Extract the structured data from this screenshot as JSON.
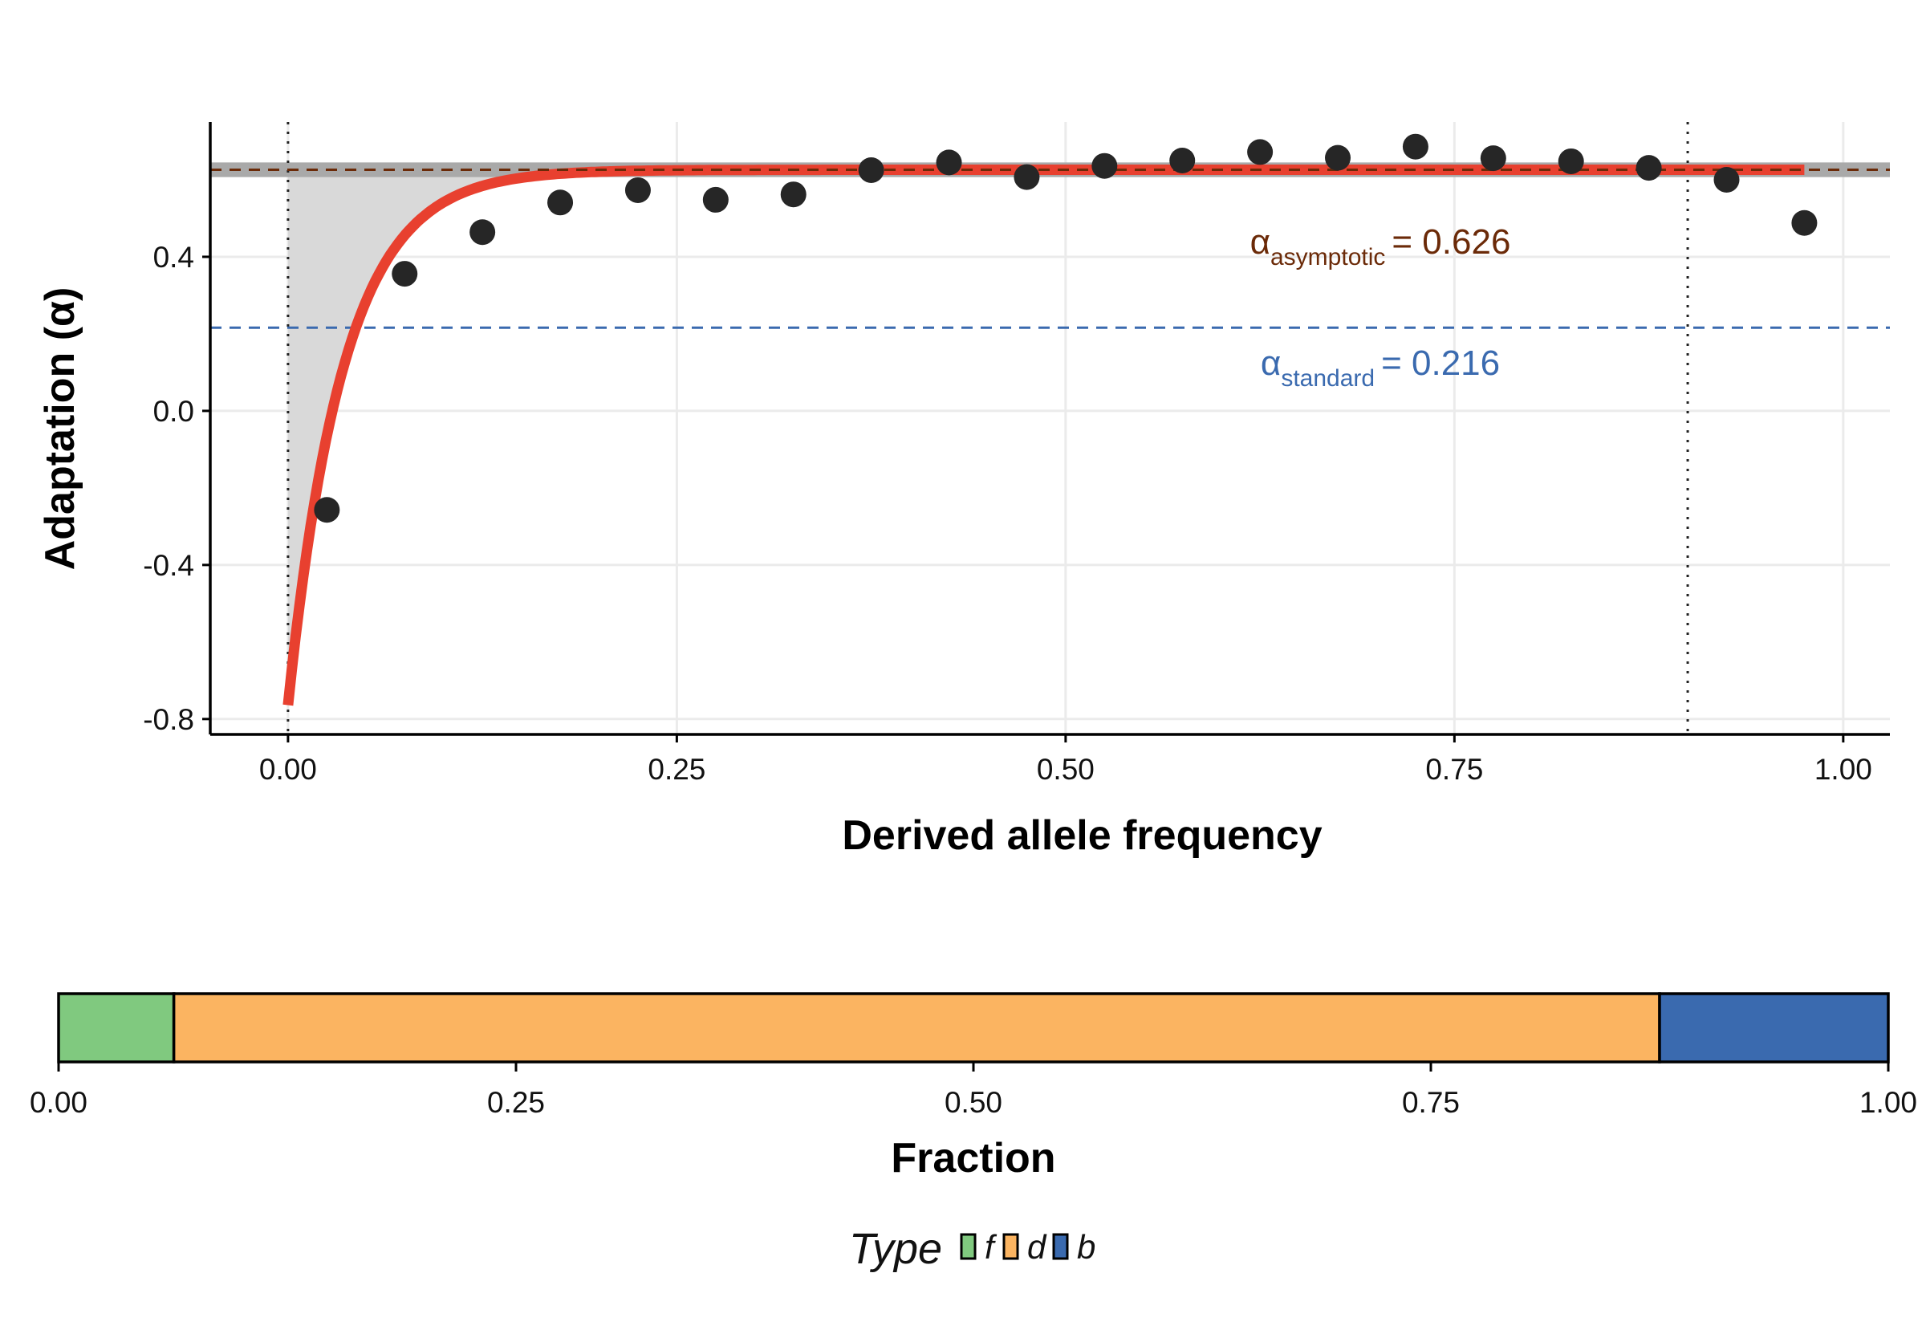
{
  "chart_data": [
    {
      "type": "scatter",
      "xlabel": "Derived allele frequency",
      "ylabel": "Adaptation (α)",
      "xlim": [
        -0.05,
        1.03
      ],
      "ylim": [
        -0.84,
        0.75
      ],
      "xticks": [
        "0.00",
        "0.25",
        "0.50",
        "0.75",
        "1.00"
      ],
      "yticks": [
        "-0.8",
        "-0.4",
        "0.0",
        "0.4"
      ],
      "grid": true,
      "series": [
        {
          "kind": "points",
          "x": [
            0.025,
            0.075,
            0.125,
            0.175,
            0.225,
            0.275,
            0.325,
            0.375,
            0.425,
            0.475,
            0.525,
            0.575,
            0.625,
            0.675,
            0.725,
            0.775,
            0.825,
            0.875,
            0.925,
            0.975
          ],
          "y": [
            -0.257,
            0.356,
            0.464,
            0.541,
            0.573,
            0.548,
            0.562,
            0.625,
            0.645,
            0.607,
            0.636,
            0.65,
            0.672,
            0.657,
            0.686,
            0.656,
            0.648,
            0.631,
            0.6,
            0.488
          ],
          "color": "#262626"
        },
        {
          "kind": "fitted-curve",
          "model": "a + b*exp(-c*x)",
          "a": 0.626,
          "b": -1.39,
          "c": 28,
          "x_range": [
            0.0,
            0.975
          ],
          "color": "#e8402f"
        }
      ],
      "reference_lines": {
        "asymptotic": {
          "value": 0.626,
          "ci": [
            0.607,
            0.645
          ],
          "color": "#6b2a08",
          "label_symbol": "α",
          "label_sub": "asymptotic",
          "label_value": "= 0.626"
        },
        "standard": {
          "value": 0.216,
          "color": "#3a6aaf",
          "label_symbol": "α",
          "label_sub": "standard",
          "label_value": "= 0.216"
        }
      },
      "cutoffs_x": [
        0.0,
        0.9
      ]
    },
    {
      "type": "bar",
      "orientation": "horizontal-stacked",
      "xlabel": "Fraction",
      "xlim": [
        0,
        1
      ],
      "xticks": [
        "0.00",
        "0.25",
        "0.50",
        "0.75",
        "1.00"
      ],
      "segments": [
        {
          "name": "f",
          "value": 0.063,
          "color": "#80c97f"
        },
        {
          "name": "d",
          "value": 0.812,
          "color": "#fbb461"
        },
        {
          "name": "b",
          "value": 0.125,
          "color": "#3a6aaf"
        }
      ],
      "legend": {
        "title": "Type",
        "placement": "bottom",
        "entries": [
          "f",
          "d",
          "b"
        ]
      }
    }
  ]
}
